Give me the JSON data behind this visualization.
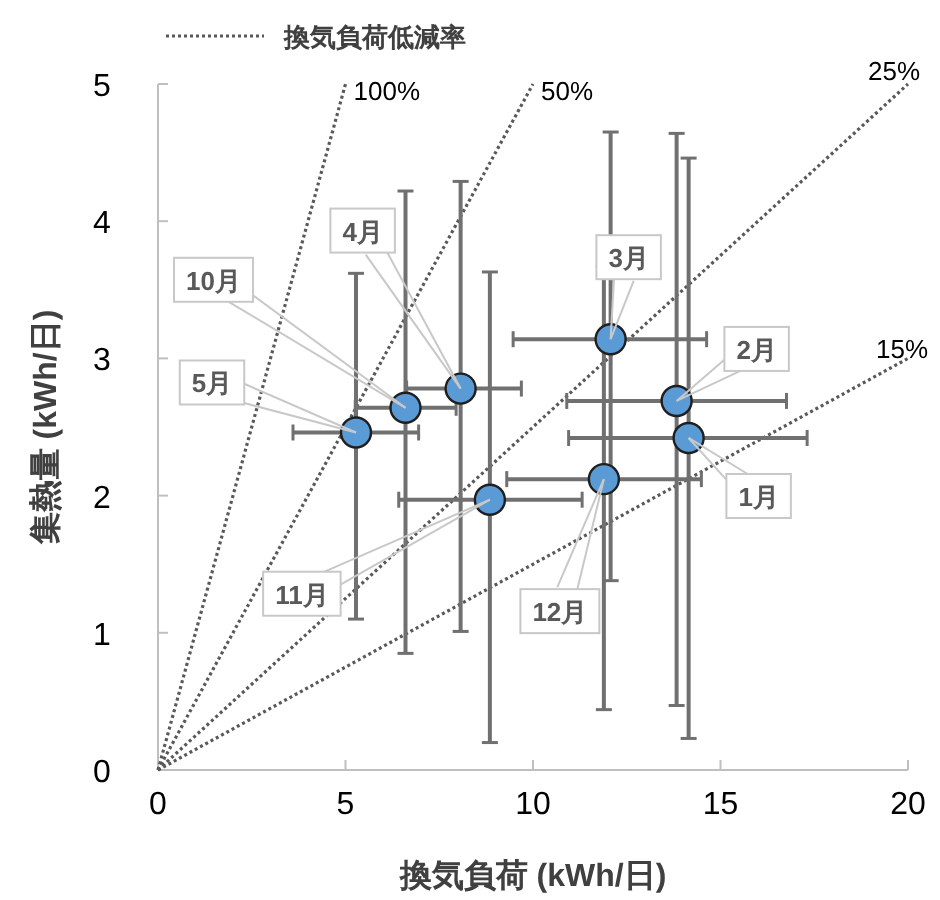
{
  "chart_data": {
    "type": "scatter",
    "xlabel": "換気負荷 (kWh/日)",
    "ylabel": "集熱量 (kWh/日)",
    "xlim": [
      0,
      20
    ],
    "ylim": [
      0,
      5
    ],
    "xticks": [
      0,
      5,
      10,
      15,
      20
    ],
    "yticks": [
      0,
      1,
      2,
      3,
      4,
      5
    ],
    "grid": false,
    "legend": "top",
    "series": [
      {
        "type": "line",
        "name": "換気負荷低減率",
        "color": "#595959",
        "line_style": "dotted",
        "marker": "none",
        "x": [
          0,
          5
        ],
        "values": [
          0,
          5
        ]
      },
      {
        "type": "line",
        "color": "#595959",
        "line_style": "dotted",
        "marker": "none",
        "x": [
          0,
          10
        ],
        "values": [
          0,
          5
        ]
      },
      {
        "type": "line",
        "color": "#595959",
        "line_style": "dotted",
        "marker": "none",
        "x": [
          0,
          20
        ],
        "values": [
          0,
          5
        ]
      },
      {
        "type": "line",
        "color": "#595959",
        "line_style": "dotted",
        "marker": "none",
        "x": [
          0,
          20
        ],
        "values": [
          0,
          3
        ]
      },
      {
        "type": "scatter",
        "color": "#5b9bd5",
        "marker": "circle",
        "x": [
          14.15,
          13.83,
          12.07,
          8.07,
          5.28,
          6.6,
          8.85,
          11.89
        ],
        "values": [
          2.42,
          2.69,
          3.14,
          2.78,
          2.46,
          2.64,
          1.97,
          2.12
        ],
        "errors": [
          [
            0.23,
            4.46
          ],
          [
            0.47,
            4.64
          ],
          [
            1.38,
            4.65
          ],
          [
            1.01,
            4.29
          ],
          [
            1.1,
            3.62
          ],
          [
            0.85,
            4.22
          ],
          [
            0.2,
            3.63
          ],
          [
            0.44,
            3.67
          ]
        ],
        "xerrors": [
          [
            10.95,
            17.31
          ],
          [
            10.9,
            16.76
          ],
          [
            9.47,
            14.63
          ],
          [
            6.63,
            9.69
          ],
          [
            3.6,
            6.95
          ],
          [
            5.26,
            7.95
          ],
          [
            6.42,
            11.31
          ],
          [
            9.3,
            14.49
          ]
        ]
      }
    ],
    "annotations": [
      {
        "text": "100%",
        "x": 5,
        "y": 5
      },
      {
        "text": "50%",
        "x": 10,
        "y": 5
      },
      {
        "text": "25%",
        "x": 20,
        "y": 5
      },
      {
        "text": "15%",
        "x": 20,
        "y": 3
      },
      {
        "text": "1月",
        "x": 14.15,
        "y": 2.42
      },
      {
        "text": "2月",
        "x": 13.83,
        "y": 2.69
      },
      {
        "text": "3月",
        "x": 12.07,
        "y": 3.14
      },
      {
        "text": "4月",
        "x": 8.07,
        "y": 2.78
      },
      {
        "text": "5月",
        "x": 5.28,
        "y": 2.46
      },
      {
        "text": "10月",
        "x": 6.6,
        "y": 2.64
      },
      {
        "text": "11月",
        "x": 8.85,
        "y": 1.97
      },
      {
        "text": "12月",
        "x": 11.89,
        "y": 2.12
      }
    ]
  }
}
